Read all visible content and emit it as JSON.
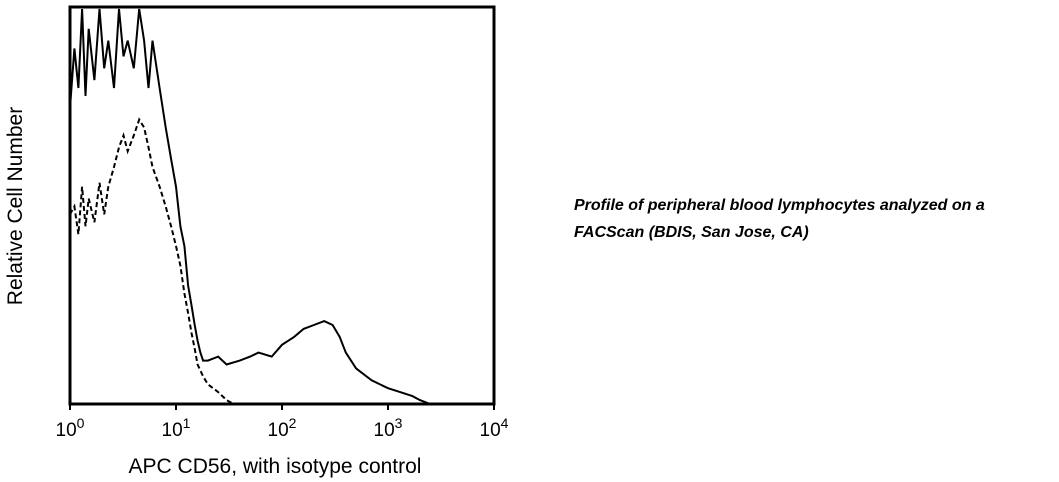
{
  "caption": {
    "line1": "Profile of peripheral blood lymphocytes analyzed on a",
    "line2": "FACScan (BDIS, San Jose, CA)"
  },
  "chart_data": {
    "type": "line",
    "xlabel": "APC CD56, with isotype control",
    "ylabel": "Relative Cell Number",
    "x_scale": "log",
    "xlim": [
      1,
      10000
    ],
    "ylim": [
      0,
      100
    ],
    "x_ticks": [
      {
        "base": "10",
        "exp": "0",
        "value": 1
      },
      {
        "base": "10",
        "exp": "1",
        "value": 10
      },
      {
        "base": "10",
        "exp": "2",
        "value": 100
      },
      {
        "base": "10",
        "exp": "3",
        "value": 1000
      },
      {
        "base": "10",
        "exp": "4",
        "value": 10000
      }
    ],
    "grid": false,
    "legend": "none",
    "series": [
      {
        "style": "solid",
        "color": "#000000",
        "points": [
          [
            1.0,
            75
          ],
          [
            1.1,
            90
          ],
          [
            1.2,
            80
          ],
          [
            1.3,
            100
          ],
          [
            1.4,
            78
          ],
          [
            1.5,
            95
          ],
          [
            1.7,
            82
          ],
          [
            1.9,
            100
          ],
          [
            2.1,
            85
          ],
          [
            2.3,
            92
          ],
          [
            2.6,
            80
          ],
          [
            2.9,
            100
          ],
          [
            3.2,
            88
          ],
          [
            3.5,
            92
          ],
          [
            4.0,
            85
          ],
          [
            4.5,
            100
          ],
          [
            5.0,
            92
          ],
          [
            5.5,
            80
          ],
          [
            6.0,
            92
          ],
          [
            7.0,
            80
          ],
          [
            8.0,
            70
          ],
          [
            9.0,
            62
          ],
          [
            10.0,
            55
          ],
          [
            11.0,
            45
          ],
          [
            12.0,
            40
          ],
          [
            13.0,
            30
          ],
          [
            14.0,
            25
          ],
          [
            15.0,
            20
          ],
          [
            16.0,
            16
          ],
          [
            17.0,
            13
          ],
          [
            18.0,
            11
          ],
          [
            20.0,
            11
          ],
          [
            25.0,
            12
          ],
          [
            30.0,
            10
          ],
          [
            40.0,
            11
          ],
          [
            50.0,
            12
          ],
          [
            60.0,
            13
          ],
          [
            80.0,
            12
          ],
          [
            100.0,
            15
          ],
          [
            130.0,
            17
          ],
          [
            160.0,
            19
          ],
          [
            200.0,
            20
          ],
          [
            250.0,
            21
          ],
          [
            300.0,
            20
          ],
          [
            350.0,
            17
          ],
          [
            400.0,
            13
          ],
          [
            500.0,
            9
          ],
          [
            700.0,
            6
          ],
          [
            1000.0,
            4
          ],
          [
            1300.0,
            3
          ],
          [
            1700.0,
            2
          ],
          [
            2000.0,
            1
          ],
          [
            2500.0,
            0
          ]
        ]
      },
      {
        "style": "dashed",
        "color": "#000000",
        "points": [
          [
            1.0,
            48
          ],
          [
            1.1,
            50
          ],
          [
            1.2,
            43
          ],
          [
            1.3,
            55
          ],
          [
            1.4,
            45
          ],
          [
            1.5,
            52
          ],
          [
            1.7,
            46
          ],
          [
            1.9,
            56
          ],
          [
            2.1,
            48
          ],
          [
            2.3,
            55
          ],
          [
            2.6,
            60
          ],
          [
            2.9,
            65
          ],
          [
            3.2,
            68
          ],
          [
            3.5,
            64
          ],
          [
            4.0,
            68
          ],
          [
            4.5,
            72
          ],
          [
            5.0,
            70
          ],
          [
            5.5,
            65
          ],
          [
            6.0,
            60
          ],
          [
            7.0,
            55
          ],
          [
            8.0,
            50
          ],
          [
            9.0,
            45
          ],
          [
            10.0,
            40
          ],
          [
            11.0,
            35
          ],
          [
            12.0,
            28
          ],
          [
            13.0,
            23
          ],
          [
            14.0,
            18
          ],
          [
            15.0,
            14
          ],
          [
            16.0,
            10
          ],
          [
            18.0,
            7
          ],
          [
            20.0,
            5
          ],
          [
            25.0,
            3
          ],
          [
            30.0,
            1
          ],
          [
            35.0,
            0
          ]
        ]
      }
    ]
  }
}
